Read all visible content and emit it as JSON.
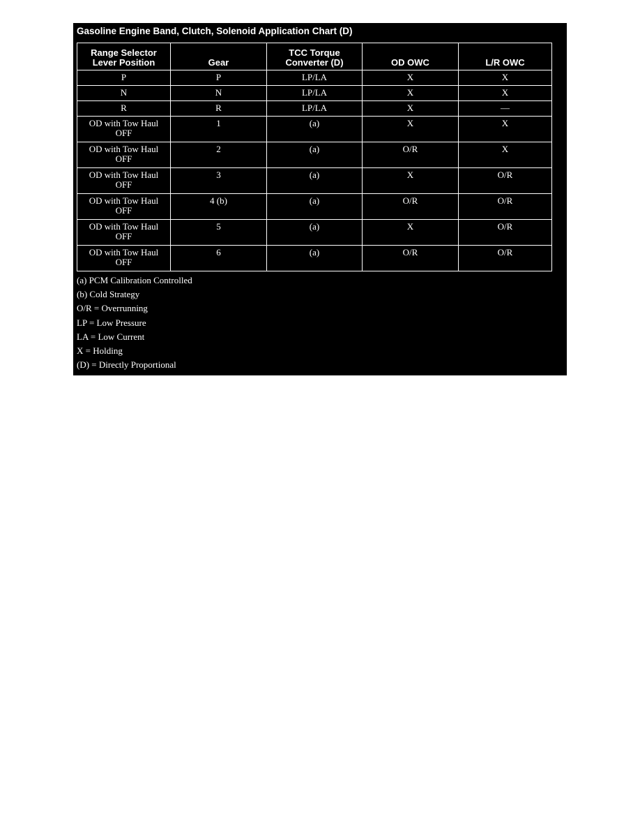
{
  "header": {
    "title": "Gasoline Engine Band, Clutch, Solenoid Application Chart (D)"
  },
  "table": {
    "columns": [
      "Range Selector Lever Position",
      "Gear",
      "TCC Torque Converter (D)",
      "OD OWC",
      "L/R OWC"
    ],
    "rows": [
      [
        "P",
        "P",
        "LP/LA",
        "X",
        "X"
      ],
      [
        "N",
        "N",
        "LP/LA",
        "X",
        "X"
      ],
      [
        "R",
        "R",
        "LP/LA",
        "X",
        "—"
      ],
      [
        "OD with Tow Haul OFF",
        "1",
        "(a)",
        "X",
        "X"
      ],
      [
        "OD with Tow Haul OFF",
        "2",
        "(a)",
        "O/R",
        "X"
      ],
      [
        "OD with Tow Haul OFF",
        "3",
        "(a)",
        "X",
        "O/R"
      ],
      [
        "OD with Tow Haul OFF",
        "4 (b)",
        "(a)",
        "O/R",
        "O/R"
      ],
      [
        "OD with Tow Haul OFF",
        "5",
        "(a)",
        "X",
        "O/R"
      ],
      [
        "OD with Tow Haul OFF",
        "6",
        "(a)",
        "O/R",
        "O/R"
      ]
    ]
  },
  "notes": [
    "(a) PCM Calibration Controlled",
    "(b) Cold Strategy",
    "O/R = Overrunning",
    "LP = Low Pressure",
    "LA = Low Current",
    "X = Holding",
    "(D) = Directly Proportional"
  ]
}
